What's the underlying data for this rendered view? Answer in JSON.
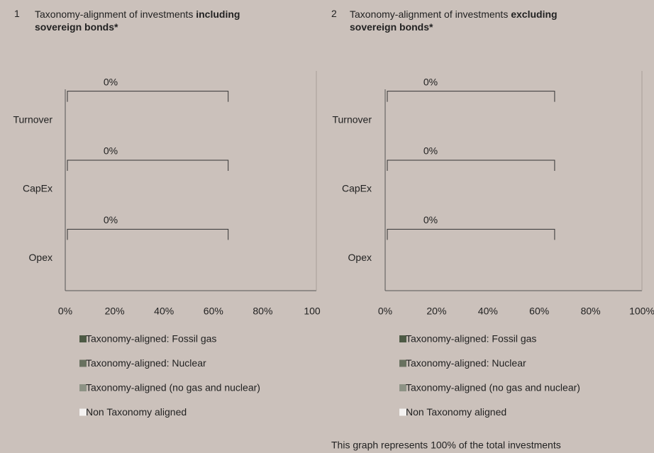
{
  "chart_data": [
    {
      "type": "bar",
      "orientation": "horizontal",
      "number": "1",
      "title": "Taxonomy-alignment of investments",
      "title_bold": "including sovereign bonds*",
      "categories": [
        "Turnover",
        "CapEx",
        "Opex"
      ],
      "series": [
        {
          "name": "Taxonomy-aligned: Fossil gas",
          "color": "#4d5a45",
          "values": [
            0,
            0,
            0
          ]
        },
        {
          "name": "Taxonomy-aligned: Nuclear",
          "color": "#68715f",
          "values": [
            0,
            0,
            0
          ]
        },
        {
          "name": "Taxonomy-aligned (no gas and nuclear)",
          "color": "#8d9285",
          "values": [
            0,
            0,
            0
          ]
        },
        {
          "name": "Non Taxonomy aligned",
          "color": "#f4f2f1",
          "values": [
            0,
            0,
            0
          ]
        }
      ],
      "aligned_total": {
        "values": [
          0,
          0,
          0
        ],
        "value_labels": [
          "0%",
          "0%",
          "0%"
        ]
      },
      "xlim": [
        0,
        100
      ],
      "xticks": [
        {
          "value": 0,
          "label": "0%"
        },
        {
          "value": 20,
          "label": "20%"
        },
        {
          "value": 40,
          "label": "40%"
        },
        {
          "value": 60,
          "label": "60%"
        },
        {
          "value": 80,
          "label": "80%"
        },
        {
          "value": 100,
          "label": "100"
        }
      ]
    },
    {
      "type": "bar",
      "orientation": "horizontal",
      "number": "2",
      "title": "Taxonomy-alignment of investments",
      "title_bold": "excluding sovereign bonds*",
      "categories": [
        "Turnover",
        "CapEx",
        "Opex"
      ],
      "series": [
        {
          "name": "Taxonomy-aligned: Fossil gas",
          "color": "#4d5a45",
          "values": [
            0,
            0,
            0
          ]
        },
        {
          "name": "Taxonomy-aligned: Nuclear",
          "color": "#68715f",
          "values": [
            0,
            0,
            0
          ]
        },
        {
          "name": "Taxonomy-aligned (no gas and nuclear)",
          "color": "#8d9285",
          "values": [
            0,
            0,
            0
          ]
        },
        {
          "name": "Non Taxonomy aligned",
          "color": "#f4f2f1",
          "values": [
            0,
            0,
            0
          ]
        }
      ],
      "aligned_total": {
        "values": [
          0,
          0,
          0
        ],
        "value_labels": [
          "0%",
          "0%",
          "0%"
        ]
      },
      "xlim": [
        0,
        100
      ],
      "xticks": [
        {
          "value": 0,
          "label": "0%"
        },
        {
          "value": 20,
          "label": "20%"
        },
        {
          "value": 40,
          "label": "40%"
        },
        {
          "value": 60,
          "label": "60%"
        },
        {
          "value": 80,
          "label": "80%"
        },
        {
          "value": 100,
          "label": "100%"
        }
      ]
    }
  ],
  "note": "This graph represents 100% of the total investments"
}
